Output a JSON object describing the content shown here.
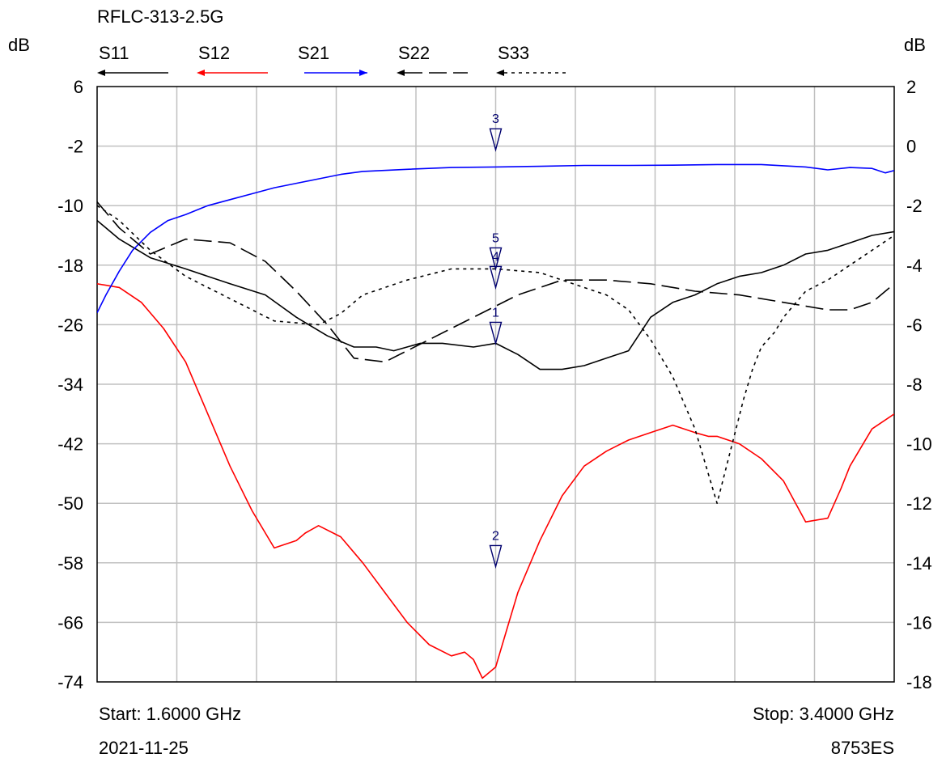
{
  "chart_data": {
    "type": "line",
    "title": "RFLC-313-2.5G",
    "left_axis": {
      "unit_label": "dB",
      "min": -74,
      "max": 6,
      "step": 8,
      "ticks": [
        "6",
        "-2",
        "-10",
        "-18",
        "-26",
        "-34",
        "-42",
        "-50",
        "-58",
        "-66",
        "-74"
      ]
    },
    "right_axis": {
      "unit_label": "dB",
      "min": -18,
      "max": 2,
      "step": 2,
      "ticks": [
        "2",
        "0",
        "-2",
        "-4",
        "-6",
        "-8",
        "-10",
        "-12",
        "-14",
        "-16",
        "-18"
      ]
    },
    "x_range_ghz": [
      1.6,
      3.4
    ],
    "x_divisions": 10,
    "grid": true,
    "start_label": "Start: 1.6000 GHz",
    "stop_label": "Stop: 3.4000 GHz",
    "date_label": "2021-11-25",
    "instrument_label": "8753ES",
    "legend": [
      {
        "name": "S11",
        "color": "#000000",
        "dash": ""
      },
      {
        "name": "S12",
        "color": "#ff0000",
        "dash": ""
      },
      {
        "name": "S21",
        "color": "#0000ff",
        "dash": ""
      },
      {
        "name": "S22",
        "color": "#000000",
        "dash": "22,8"
      },
      {
        "name": "S33",
        "color": "#000000",
        "dash": "4,5"
      }
    ],
    "series": [
      {
        "name": "S11",
        "axis": "left",
        "color": "#000000",
        "dash": "",
        "x": [
          1.6,
          1.65,
          1.72,
          1.8,
          1.9,
          1.98,
          2.05,
          2.12,
          2.18,
          2.23,
          2.27,
          2.33,
          2.38,
          2.45,
          2.5,
          2.55,
          2.6,
          2.65,
          2.7,
          2.75,
          2.8,
          2.85,
          2.9,
          2.95,
          3.0,
          3.05,
          3.1,
          3.15,
          3.2,
          3.25,
          3.3,
          3.35,
          3.4
        ],
        "y": [
          -12,
          -14.5,
          -17,
          -18.5,
          -20.5,
          -22,
          -25,
          -27.5,
          -29,
          -29,
          -29.5,
          -28.5,
          -28.5,
          -29,
          -28.5,
          -30,
          -32,
          -32,
          -31.5,
          -30.5,
          -29.5,
          -25,
          -23,
          -22,
          -20.5,
          -19.5,
          -19,
          -18,
          -16.5,
          -16,
          -15,
          -14,
          -13.5
        ]
      },
      {
        "name": "S12",
        "axis": "left",
        "color": "#ff0000",
        "dash": "",
        "x": [
          1.6,
          1.65,
          1.7,
          1.75,
          1.8,
          1.85,
          1.9,
          1.95,
          2.0,
          2.05,
          2.07,
          2.1,
          2.15,
          2.2,
          2.25,
          2.3,
          2.35,
          2.4,
          2.43,
          2.45,
          2.47,
          2.5,
          2.53,
          2.55,
          2.6,
          2.65,
          2.7,
          2.75,
          2.8,
          2.85,
          2.9,
          2.95,
          2.98,
          3.0,
          3.05,
          3.1,
          3.15,
          3.2,
          3.25,
          3.28,
          3.3,
          3.35,
          3.4
        ],
        "y": [
          -20.5,
          -21,
          -23,
          -26.5,
          -31,
          -38,
          -45,
          -51,
          -56,
          -55,
          -54,
          -53,
          -54.5,
          -58,
          -62,
          -66,
          -69,
          -70.5,
          -70,
          -71,
          -73.5,
          -72,
          -66,
          -62,
          -55,
          -49,
          -45,
          -43,
          -41.5,
          -40.5,
          -39.5,
          -40.5,
          -41,
          -41,
          -42,
          -44,
          -47,
          -52.5,
          -52,
          -48,
          -45,
          -40,
          -38
        ]
      },
      {
        "name": "S21",
        "axis": "right",
        "color": "#0000ff",
        "dash": "",
        "x": [
          1.6,
          1.62,
          1.65,
          1.68,
          1.72,
          1.76,
          1.8,
          1.85,
          1.9,
          1.95,
          2.0,
          2.05,
          2.1,
          2.15,
          2.2,
          2.3,
          2.4,
          2.5,
          2.6,
          2.7,
          2.8,
          2.9,
          3.0,
          3.1,
          3.2,
          3.25,
          3.3,
          3.35,
          3.38,
          3.4
        ],
        "y": [
          -5.6,
          -5,
          -4.2,
          -3.5,
          -2.9,
          -2.5,
          -2.3,
          -2,
          -1.8,
          -1.6,
          -1.4,
          -1.25,
          -1.1,
          -0.95,
          -0.85,
          -0.78,
          -0.72,
          -0.7,
          -0.68,
          -0.65,
          -0.65,
          -0.64,
          -0.62,
          -0.62,
          -0.7,
          -0.8,
          -0.72,
          -0.75,
          -0.9,
          -0.82
        ]
      },
      {
        "name": "S22",
        "axis": "left",
        "color": "#000000",
        "dash": "22,8",
        "x": [
          1.6,
          1.65,
          1.72,
          1.8,
          1.9,
          1.98,
          2.05,
          2.12,
          2.18,
          2.25,
          2.35,
          2.45,
          2.55,
          2.65,
          2.75,
          2.85,
          2.95,
          3.05,
          3.15,
          3.25,
          3.3,
          3.35,
          3.4
        ],
        "y": [
          -9.5,
          -13,
          -16.5,
          -14.5,
          -15,
          -17.5,
          -21.5,
          -26,
          -30.5,
          -31,
          -28,
          -25,
          -22,
          -20,
          -20,
          -20.5,
          -21.5,
          -22,
          -23,
          -24,
          -24,
          -23,
          -20.5
        ]
      },
      {
        "name": "S33",
        "axis": "left",
        "color": "#000000",
        "dash": "4,5",
        "x": [
          1.6,
          1.65,
          1.72,
          1.8,
          1.9,
          2.0,
          2.1,
          2.15,
          2.2,
          2.25,
          2.3,
          2.4,
          2.5,
          2.6,
          2.7,
          2.75,
          2.8,
          2.85,
          2.9,
          2.95,
          3.0,
          3.03,
          3.06,
          3.08,
          3.1,
          3.13,
          3.15,
          3.2,
          3.25,
          3.3,
          3.35,
          3.4
        ],
        "y": [
          -10,
          -12,
          -16,
          -19.5,
          -22.5,
          -25.5,
          -26,
          -24.5,
          -22,
          -21,
          -20,
          -18.5,
          -18.5,
          -19,
          -21,
          -22,
          -24,
          -28,
          -33,
          -40,
          -50,
          -43,
          -36,
          -32,
          -29,
          -27,
          -25,
          -21.5,
          -20,
          -18,
          -16,
          -14
        ]
      }
    ],
    "markers": [
      {
        "label": "3",
        "x": 2.5,
        "y": -2.5,
        "color": "#00006e"
      },
      {
        "label": "5",
        "x": 2.5,
        "y": -18.5,
        "color": "#00006e"
      },
      {
        "label": "4",
        "x": 2.5,
        "y": -21,
        "color": "#00006e"
      },
      {
        "label": "1",
        "x": 2.5,
        "y": -28.5,
        "color": "#00006e"
      },
      {
        "label": "2",
        "x": 2.5,
        "y": -58.5,
        "color": "#00006e"
      }
    ]
  }
}
